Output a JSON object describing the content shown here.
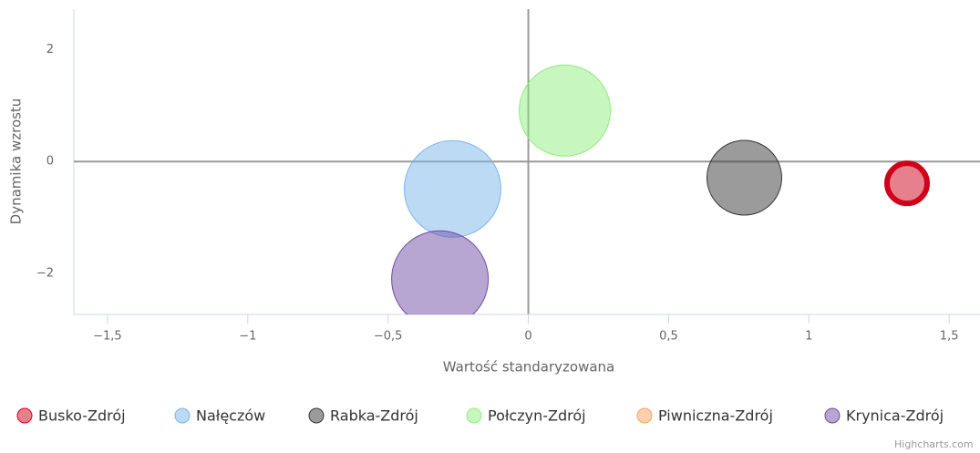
{
  "chart_data": {
    "type": "bubble",
    "xlabel": "Wartość standaryzowana",
    "ylabel": "Dynamika wzrostu",
    "credits": "Highcharts.com",
    "xlim": [
      -1.62,
      1.61
    ],
    "xticks": [
      {
        "value": -1.5,
        "label": "−1,5"
      },
      {
        "value": -1,
        "label": "−1"
      },
      {
        "value": -0.5,
        "label": "−0,5"
      },
      0,
      {
        "value": 0.5,
        "label": "0,5"
      },
      1,
      {
        "value": 1.5,
        "label": "1,5"
      }
    ],
    "ylim": [
      -2.73,
      2.72
    ],
    "yticks": [
      {
        "value": -2,
        "label": "−2"
      },
      0,
      2
    ],
    "series": [
      {
        "name": "Busko-Zdrój",
        "color": "#d0021b",
        "x": [
          1.35
        ],
        "values": [
          -0.39
        ],
        "sizes": [
          22
        ]
      },
      {
        "name": "Nałęczów",
        "color": "#7cb5ec",
        "x": [
          -0.27
        ],
        "values": [
          -0.49
        ],
        "sizes": [
          53
        ]
      },
      {
        "name": "Rabka-Zdrój",
        "color": "#373737",
        "x": [
          0.77
        ],
        "values": [
          -0.29
        ],
        "sizes": [
          41
        ]
      },
      {
        "name": "Połczyn-Zdrój",
        "color": "#90ed7d",
        "x": [
          0.13
        ],
        "values": [
          0.91
        ],
        "sizes": [
          50
        ]
      },
      {
        "name": "Piwniczna-Zdrój",
        "color": "#f7a35c",
        "x": [],
        "values": [],
        "sizes": []
      },
      {
        "name": "Krynica-Zdrój",
        "color": "#6f4ca6",
        "x": [
          -0.315
        ],
        "values": [
          -2.1
        ],
        "sizes": [
          53
        ]
      }
    ]
  }
}
